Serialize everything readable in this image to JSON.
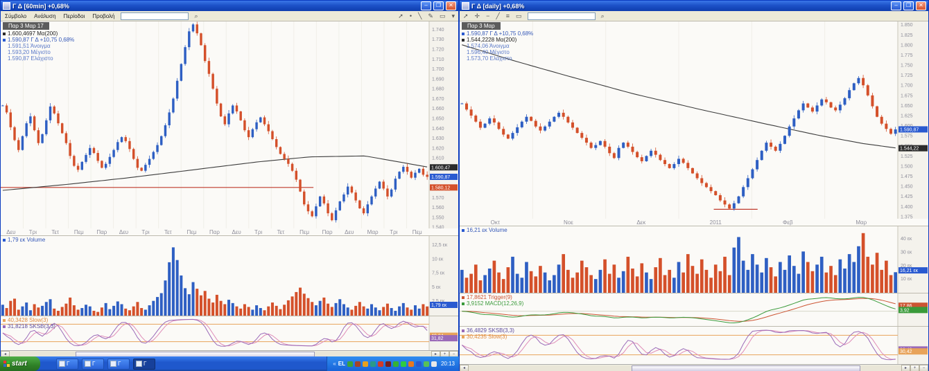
{
  "colors": {
    "up": "#2e5fc3",
    "down": "#d4502a",
    "ma": "#3c3c3c",
    "price_badge": "#2a5ad0",
    "ma_badge": "#2b2b2b",
    "prev_badge": "#d4502a",
    "level_line": "#c0392b",
    "volume_badge": "#2a5ad0",
    "stoch_k": "#9a6ab8",
    "stoch_d": "#df8cb8",
    "stoch_threshold": "#e8a35a",
    "macd": "#3a9a3a",
    "trigger": "#cc5533",
    "axis_text": "#8d8d99",
    "legend_blue": "#3558b8"
  },
  "left_window": {
    "title": "Γ Δ [60min] +0,68%",
    "menu": [
      "Σύμβολο",
      "Ανάλυση",
      "Περίοδοι",
      "Προβολή"
    ],
    "search_value": "",
    "legend": {
      "date": "Παρ 3 Μαρ 17",
      "ma": "1.600,4697 Μα(200)",
      "price": "1.590,87 Γ Δ +10,75 0,68%",
      "open": "1.591,51 Άνοιγμα",
      "high": "1.593,20 Μέγιστο",
      "low": "1.590,87 Ελάχιστο"
    },
    "volume_legend": "1,79 εκ Volume",
    "stoch_legend_1": "40,3428 Slow(3)",
    "stoch_legend_2": "31,8218 SKSB(3,3)"
  },
  "right_window": {
    "title": "Γ Δ [daily] +0,68%",
    "search_value": "",
    "legend": {
      "date": "Παρ 3 Μαρ",
      "price": "1.590,87 Γ Δ +10,75 0,68%",
      "ma": "1.544,2228 Μα(200)",
      "open": "1.574,06 Άνοιγμα",
      "high": "1.596,40 Μέγιστο",
      "low": "1.573,70 Ελάχιστο"
    },
    "volume_legend": "16,21 εκ Volume",
    "macd_legend_1": "17,8621 Trigger(9)",
    "macd_legend_2": "3,9152 MACD(12,26,9)",
    "stoch_legend_1": "36,4829 SKSB(3,3)",
    "stoch_legend_2": "30,4235 Slow(3)"
  },
  "taskbar": {
    "start_label": "start",
    "buttons": [
      {
        "label": "Γ"
      },
      {
        "label": "Γ"
      },
      {
        "label": "Γ"
      },
      {
        "label": "Γ"
      }
    ],
    "language": "EL",
    "clock": "20:13",
    "tray_icons": [
      {
        "name": "tray-icon-1",
        "color": "#3aa33a"
      },
      {
        "name": "tray-icon-2",
        "color": "#a5432a"
      },
      {
        "name": "tray-icon-3",
        "color": "#e8a020"
      },
      {
        "name": "tray-icon-4",
        "color": "#2a9a8a"
      },
      {
        "name": "tray-icon-5",
        "color": "#d23a2a"
      },
      {
        "name": "tray-icon-6",
        "color": "#7a1f1f"
      },
      {
        "name": "tray-icon-7",
        "color": "#35b235"
      },
      {
        "name": "tray-icon-8",
        "color": "#2ecc40"
      },
      {
        "name": "tray-icon-9",
        "color": "#e87820"
      },
      {
        "name": "tray-icon-10",
        "color": "#2a5ad0"
      },
      {
        "name": "tray-icon-11",
        "color": "#58c058"
      },
      {
        "name": "tray-icon-12",
        "color": "#e8e8e8"
      }
    ]
  },
  "chart_data": [
    {
      "name": "left_main",
      "type": "candlestick",
      "title": "Γ Δ 60min",
      "ylim": [
        1538,
        1748
      ],
      "ytick_vals": [
        1740,
        1730,
        1720,
        1710,
        1700,
        1690,
        1680,
        1670,
        1660,
        1650,
        1640,
        1630,
        1620,
        1610,
        1600,
        1590,
        1580,
        1570,
        1560,
        1550,
        1540
      ],
      "ytick_labels": [
        "1.740",
        "1.730",
        "1.720",
        "1.710",
        "1.700",
        "1.690",
        "1.680",
        "1.670",
        "1.660",
        "1.650",
        "1.640",
        "1.630",
        "1.620",
        "1.610",
        "1.600",
        "1.590",
        "1.580",
        "1.570",
        "1.560",
        "1.550",
        "1.540"
      ],
      "x_labels": [
        "Δευ",
        "Τρι",
        "Τετ",
        "Πεμ",
        "Παρ",
        "Δευ",
        "Τρι",
        "Τετ",
        "Πεμ",
        "Παρ",
        "Δευ",
        "Τρι",
        "Τετ",
        "Πεμ",
        "Παρ",
        "Δευ",
        "Μαρ",
        "Τρι",
        "Πεμ"
      ],
      "close": [
        1663,
        1656,
        1641,
        1628,
        1618,
        1632,
        1645,
        1652,
        1638,
        1625,
        1634,
        1648,
        1662,
        1655,
        1645,
        1635,
        1625,
        1612,
        1602,
        1598,
        1606,
        1613,
        1620,
        1615,
        1607,
        1600,
        1604,
        1611,
        1618,
        1626,
        1631,
        1627,
        1619,
        1609,
        1600,
        1597,
        1603,
        1609,
        1616,
        1623,
        1632,
        1643,
        1656,
        1670,
        1688,
        1705,
        1722,
        1738,
        1745,
        1736,
        1724,
        1708,
        1695,
        1680,
        1665,
        1652,
        1644,
        1655,
        1663,
        1657,
        1648,
        1638,
        1631,
        1639,
        1646,
        1651,
        1644,
        1637,
        1629,
        1621,
        1614,
        1609,
        1604,
        1597,
        1588,
        1576,
        1563,
        1556,
        1551,
        1561,
        1571,
        1564,
        1554,
        1547,
        1557,
        1566,
        1573,
        1581,
        1575,
        1567,
        1559,
        1554,
        1563,
        1571,
        1579,
        1586,
        1579,
        1571,
        1578,
        1589,
        1596,
        1601,
        1596,
        1590,
        1595,
        1599,
        1593,
        1590.87
      ],
      "ma_points": [
        [
          0,
          1577
        ],
        [
          0.15,
          1583
        ],
        [
          0.3,
          1590
        ],
        [
          0.45,
          1598
        ],
        [
          0.6,
          1606
        ],
        [
          0.72,
          1611
        ],
        [
          0.85,
          1612
        ],
        [
          1,
          1600.5
        ]
      ],
      "level_line": {
        "value": 1580.12,
        "x2": 0.73
      },
      "markers": [
        {
          "v": 1600.47,
          "label": "1.600,47",
          "color_key": "ma_badge"
        },
        {
          "v": 1590.87,
          "label": "1.590,87",
          "color_key": "price_badge"
        },
        {
          "v": 1580.12,
          "label": "1.580,12",
          "color_key": "prev_badge"
        }
      ]
    },
    {
      "name": "left_volume",
      "type": "bar",
      "title": "Volume 60min",
      "ylim": [
        0,
        13.8
      ],
      "ytick_vals": [
        12.5,
        10,
        7.5,
        5,
        2.5
      ],
      "ytick_labels": [
        "12,5 εκ",
        "10 εκ",
        "7,5 εκ",
        "5 εκ",
        "2,5 εκ"
      ],
      "values": [
        2.1,
        1.5,
        2.8,
        3.2,
        1.2,
        1.8,
        2.5,
        1.1,
        2.2,
        1.6,
        1.9,
        2.6,
        3.1,
        1.4,
        1.0,
        1.7,
        2.3,
        3.4,
        2.0,
        1.2,
        1.5,
        2.1,
        1.8,
        1.0,
        0.8,
        1.6,
        2.4,
        1.3,
        1.9,
        2.7,
        2.2,
        1.4,
        1.1,
        1.8,
        2.6,
        1.5,
        1.2,
        2.0,
        2.8,
        3.5,
        4.2,
        6.5,
        9.8,
        12.5,
        10.2,
        7.4,
        5.1,
        4.0,
        6.2,
        5.0,
        3.8,
        4.6,
        3.2,
        2.5,
        3.9,
        2.8,
        2.2,
        3.0,
        2.4,
        1.8,
        1.4,
        2.2,
        1.7,
        1.2,
        2.0,
        1.5,
        1.1,
        1.8,
        2.5,
        1.9,
        1.3,
        2.1,
        2.9,
        3.6,
        4.4,
        5.2,
        4.1,
        3.3,
        2.6,
        2.0,
        2.8,
        3.4,
        2.3,
        1.7,
        2.4,
        3.1,
        2.2,
        1.6,
        1.2,
        1.9,
        2.6,
        1.8,
        1.4,
        2.2,
        1.6,
        1.1,
        1.7,
        2.3,
        1.5,
        1.0,
        1.8,
        2.4,
        1.6,
        1.2,
        2.0,
        1.4,
        2.2,
        1.79
      ],
      "markers": [
        {
          "v": 1.79,
          "label": "1,79 εκ",
          "color_key": "volume_badge"
        }
      ]
    },
    {
      "name": "left_stoch",
      "type": "line",
      "title": "Stochastic 60min",
      "derived": "Stochastic SKSB(3,3)/Slow(3) of close",
      "ylim": [
        0,
        100
      ],
      "thresholds": [
        80,
        20
      ],
      "markers": [
        {
          "v": 40.34,
          "label": "40,34",
          "color_key": "stoch_threshold"
        },
        {
          "v": 31.82,
          "label": "31,82",
          "color_key": "stoch_k"
        }
      ]
    },
    {
      "name": "right_main",
      "type": "candlestick",
      "title": "Γ Δ daily",
      "ylim": [
        1368,
        1858
      ],
      "ytick_vals": [
        1850,
        1825,
        1800,
        1775,
        1750,
        1725,
        1700,
        1675,
        1650,
        1625,
        1600,
        1575,
        1550,
        1525,
        1500,
        1475,
        1450,
        1425,
        1400,
        1375
      ],
      "ytick_labels": [
        "1.850",
        "1.825",
        "1.800",
        "1.775",
        "1.750",
        "1.725",
        "1.700",
        "1.675",
        "1.650",
        "1.625",
        "1.600",
        "1.575",
        "1.550",
        "1.525",
        "1.500",
        "1.475",
        "1.450",
        "1.425",
        "1.400",
        "1.375"
      ],
      "x_labels": [
        "Οκτ",
        "Νοε",
        "Δεκ",
        "2011",
        "Φεβ",
        "Μαρ"
      ],
      "close": [
        1655,
        1640,
        1625,
        1610,
        1595,
        1605,
        1618,
        1608,
        1592,
        1578,
        1568,
        1582,
        1596,
        1610,
        1622,
        1612,
        1598,
        1588,
        1598,
        1610,
        1622,
        1632,
        1622,
        1608,
        1595,
        1582,
        1570,
        1558,
        1545,
        1552,
        1562,
        1548,
        1532,
        1520,
        1545,
        1558,
        1548,
        1535,
        1522,
        1512,
        1525,
        1538,
        1528,
        1515,
        1505,
        1495,
        1505,
        1518,
        1508,
        1495,
        1482,
        1470,
        1458,
        1448,
        1438,
        1428,
        1415,
        1405,
        1395,
        1408,
        1425,
        1448,
        1470,
        1492,
        1515,
        1538,
        1558,
        1548,
        1538,
        1555,
        1575,
        1598,
        1618,
        1638,
        1655,
        1645,
        1635,
        1650,
        1665,
        1658,
        1645,
        1638,
        1652,
        1668,
        1688,
        1705,
        1718,
        1700,
        1675,
        1648,
        1622,
        1605,
        1592,
        1580,
        1590.87
      ],
      "ma_points": [
        [
          0,
          1802
        ],
        [
          0.12,
          1762
        ],
        [
          0.25,
          1722
        ],
        [
          0.4,
          1678
        ],
        [
          0.55,
          1640
        ],
        [
          0.7,
          1604
        ],
        [
          0.82,
          1576
        ],
        [
          0.92,
          1556
        ],
        [
          1,
          1544.2
        ]
      ],
      "segment": {
        "value": 1393,
        "x1": 0.58,
        "x2": 0.68
      },
      "markers": [
        {
          "v": 1590.87,
          "label": "1.590,87",
          "color_key": "price_badge"
        },
        {
          "v": 1544.22,
          "label": "1.544,22",
          "color_key": "ma_badge"
        }
      ]
    },
    {
      "name": "right_volume",
      "type": "bar",
      "title": "Volume daily",
      "ylim": [
        0,
        48
      ],
      "ytick_vals": [
        40,
        30,
        20,
        10
      ],
      "ytick_labels": [
        "40 εκ",
        "30 εκ",
        "20 εκ",
        "10 εκ"
      ],
      "values": [
        18,
        12,
        15,
        22,
        10,
        14,
        19,
        25,
        16,
        11,
        20,
        28,
        15,
        12,
        24,
        17,
        13,
        21,
        16,
        10,
        14,
        22,
        30,
        18,
        12,
        16,
        25,
        20,
        14,
        11,
        18,
        26,
        15,
        22,
        12,
        17,
        28,
        19,
        13,
        23,
        16,
        11,
        20,
        27,
        14,
        18,
        12,
        24,
        16,
        30,
        21,
        15,
        26,
        18,
        12,
        22,
        17,
        28,
        14,
        35,
        43,
        25,
        18,
        30,
        22,
        16,
        27,
        20,
        13,
        24,
        18,
        29,
        21,
        15,
        32,
        24,
        17,
        22,
        28,
        16,
        21,
        14,
        26,
        19,
        30,
        24,
        36,
        46,
        28,
        22,
        31,
        18,
        25,
        14,
        16.21
      ],
      "markers": [
        {
          "v": 16.21,
          "label": "16,21 εκ",
          "color_key": "volume_badge"
        }
      ]
    },
    {
      "name": "right_macd",
      "type": "line",
      "title": "MACD daily",
      "derived": "MACD(12,26,9) with Trigger(9) of close",
      "markers": [
        {
          "v": 17.86,
          "label": "17,86",
          "color_key": "trigger"
        },
        {
          "v": 3.92,
          "label": "3,92",
          "color_key": "macd"
        }
      ]
    },
    {
      "name": "right_stoch",
      "type": "line",
      "title": "Stochastic daily",
      "derived": "Stochastic SKSB(3,3)/Slow(3) of close",
      "ylim": [
        0,
        100
      ],
      "thresholds": [
        80,
        20
      ],
      "markers": [
        {
          "v": 36.48,
          "label": "36,48",
          "color_key": "stoch_k"
        },
        {
          "v": 30.42,
          "label": "30,42",
          "color_key": "stoch_threshold"
        }
      ]
    }
  ]
}
